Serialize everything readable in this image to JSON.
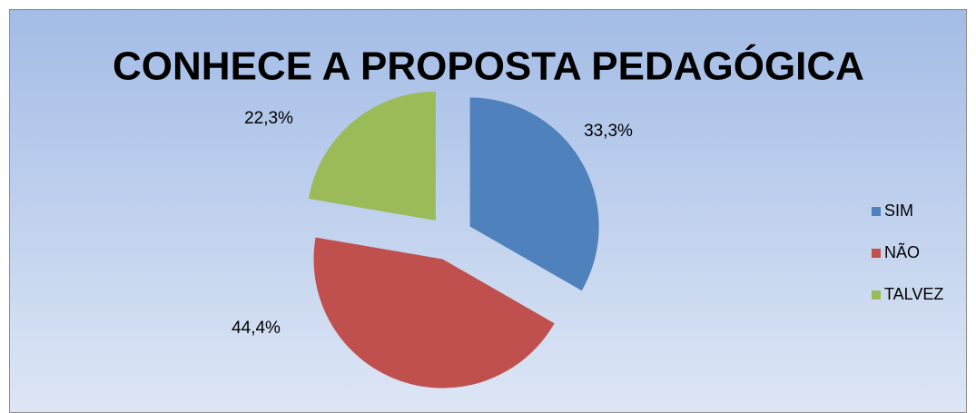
{
  "chart_data": {
    "type": "pie",
    "title": "CONHECE A PROPOSTA PEDAGÓGICA",
    "categories": [
      "SIM",
      "NÃO",
      "TALVEZ"
    ],
    "values": [
      33.3,
      44.4,
      22.3
    ],
    "value_labels": [
      "33,3%",
      "44,4%",
      "22,3%"
    ],
    "colors": [
      "#4f81bd",
      "#c0504d",
      "#9bbb59"
    ],
    "legend": "right"
  }
}
